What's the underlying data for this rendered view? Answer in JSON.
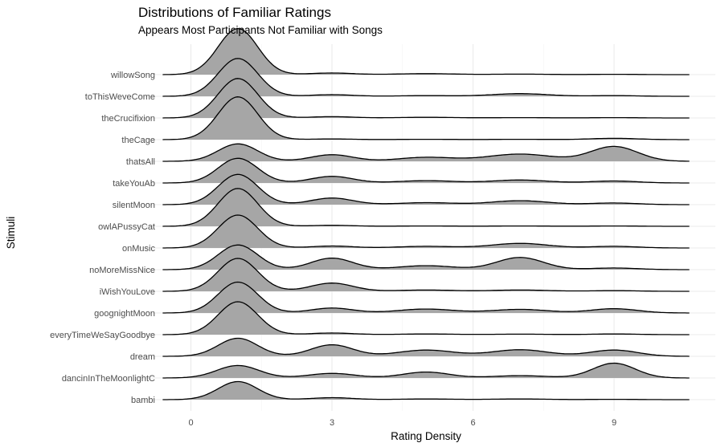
{
  "chart_data": {
    "type": "ridgeline",
    "title": "Distributions of Familiar Ratings",
    "subtitle": "Appears Most Participants Not Familiar with Songs",
    "xlabel": "Rating Density",
    "ylabel": "Stimuli",
    "xlim": [
      -0.6,
      10.6
    ],
    "x_ticks": [
      0,
      3,
      6,
      9
    ],
    "grid": true,
    "fill_color": "#a6a6a6",
    "line_color": "#000000",
    "categories": [
      "bambi",
      "dancinInTheMoonlightC",
      "dream",
      "everyTimeWeSayGoodbye",
      "goognightMoon",
      "iWishYouLove",
      "noMoreMissNice",
      "onMusic",
      "owlAPussyCat",
      "silentMoon",
      "takeYouAb",
      "thatsAll",
      "theCage",
      "theCrucifixion",
      "toThisWeveCome",
      "willowSong"
    ],
    "series": [
      {
        "peaks": [
          [
            1,
            0.55,
            0.42
          ],
          [
            3,
            0.06,
            0.45
          ],
          [
            5,
            0.02,
            0.6
          ],
          [
            7,
            0.02,
            0.6
          ],
          [
            9,
            0.01,
            0.5
          ]
        ]
      },
      {
        "peaks": [
          [
            1,
            0.38,
            0.45
          ],
          [
            3,
            0.14,
            0.5
          ],
          [
            5,
            0.18,
            0.5
          ],
          [
            7,
            0.07,
            0.6
          ],
          [
            9,
            0.45,
            0.45
          ]
        ]
      },
      {
        "peaks": [
          [
            1,
            0.55,
            0.42
          ],
          [
            3,
            0.35,
            0.45
          ],
          [
            5,
            0.19,
            0.6
          ],
          [
            7,
            0.2,
            0.6
          ],
          [
            9,
            0.19,
            0.5
          ]
        ]
      },
      {
        "peaks": [
          [
            1,
            1.0,
            0.42
          ],
          [
            3,
            0.05,
            0.45
          ],
          [
            5,
            0.02,
            0.6
          ],
          [
            7,
            0.015,
            0.6
          ],
          [
            9,
            0.02,
            0.5
          ]
        ]
      },
      {
        "peaks": [
          [
            1,
            0.94,
            0.42
          ],
          [
            3,
            0.15,
            0.45
          ],
          [
            5,
            0.12,
            0.6
          ],
          [
            7,
            0.11,
            0.6
          ],
          [
            9,
            0.13,
            0.5
          ]
        ]
      },
      {
        "peaks": [
          [
            1,
            1.0,
            0.42
          ],
          [
            3,
            0.25,
            0.45
          ],
          [
            5,
            0.04,
            0.6
          ],
          [
            7,
            0.04,
            0.6
          ],
          [
            9,
            0.02,
            0.5
          ]
        ]
      },
      {
        "peaks": [
          [
            1,
            0.75,
            0.42
          ],
          [
            3,
            0.35,
            0.45
          ],
          [
            5,
            0.12,
            0.6
          ],
          [
            7,
            0.37,
            0.5
          ],
          [
            9,
            0.05,
            0.5
          ]
        ]
      },
      {
        "peaks": [
          [
            1,
            1.0,
            0.42
          ],
          [
            3,
            0.06,
            0.45
          ],
          [
            5,
            0.05,
            0.6
          ],
          [
            7,
            0.14,
            0.6
          ],
          [
            9,
            0.05,
            0.5
          ]
        ]
      },
      {
        "peaks": [
          [
            1,
            1.15,
            0.42
          ],
          [
            3,
            0.03,
            0.45
          ],
          [
            5,
            0.01,
            0.6
          ],
          [
            7,
            0.01,
            0.6
          ],
          [
            9,
            0.01,
            0.5
          ]
        ]
      },
      {
        "peaks": [
          [
            1,
            0.92,
            0.42
          ],
          [
            3,
            0.2,
            0.45
          ],
          [
            5,
            0.06,
            0.6
          ],
          [
            7,
            0.12,
            0.6
          ],
          [
            9,
            0.05,
            0.5
          ]
        ]
      },
      {
        "peaks": [
          [
            1,
            0.75,
            0.42
          ],
          [
            3,
            0.2,
            0.45
          ],
          [
            5,
            0.07,
            0.6
          ],
          [
            7,
            0.09,
            0.6
          ],
          [
            9,
            0.06,
            0.5
          ]
        ]
      },
      {
        "peaks": [
          [
            1,
            0.53,
            0.42
          ],
          [
            3,
            0.2,
            0.45
          ],
          [
            5,
            0.12,
            0.6
          ],
          [
            7,
            0.22,
            0.7
          ],
          [
            9,
            0.45,
            0.5
          ]
        ]
      },
      {
        "peaks": [
          [
            1,
            1.3,
            0.42
          ],
          [
            3,
            0.02,
            0.45
          ],
          [
            5,
            0.01,
            0.6
          ],
          [
            7,
            0.01,
            0.6
          ],
          [
            9,
            0.04,
            0.5
          ]
        ]
      },
      {
        "peaks": [
          [
            1,
            1.2,
            0.42
          ],
          [
            3,
            0.04,
            0.45
          ],
          [
            5,
            0.02,
            0.6
          ],
          [
            7,
            0.01,
            0.6
          ],
          [
            9,
            0.01,
            0.5
          ]
        ]
      },
      {
        "peaks": [
          [
            1,
            1.15,
            0.42
          ],
          [
            3,
            0.05,
            0.45
          ],
          [
            5,
            0.02,
            0.6
          ],
          [
            7,
            0.08,
            0.6
          ],
          [
            9,
            0.02,
            0.5
          ]
        ]
      },
      {
        "peaks": [
          [
            1,
            1.4,
            0.42
          ],
          [
            3,
            0.05,
            0.45
          ],
          [
            5,
            0.03,
            0.6
          ],
          [
            7,
            0.015,
            0.6
          ],
          [
            9,
            0.01,
            0.5
          ]
        ]
      }
    ]
  }
}
